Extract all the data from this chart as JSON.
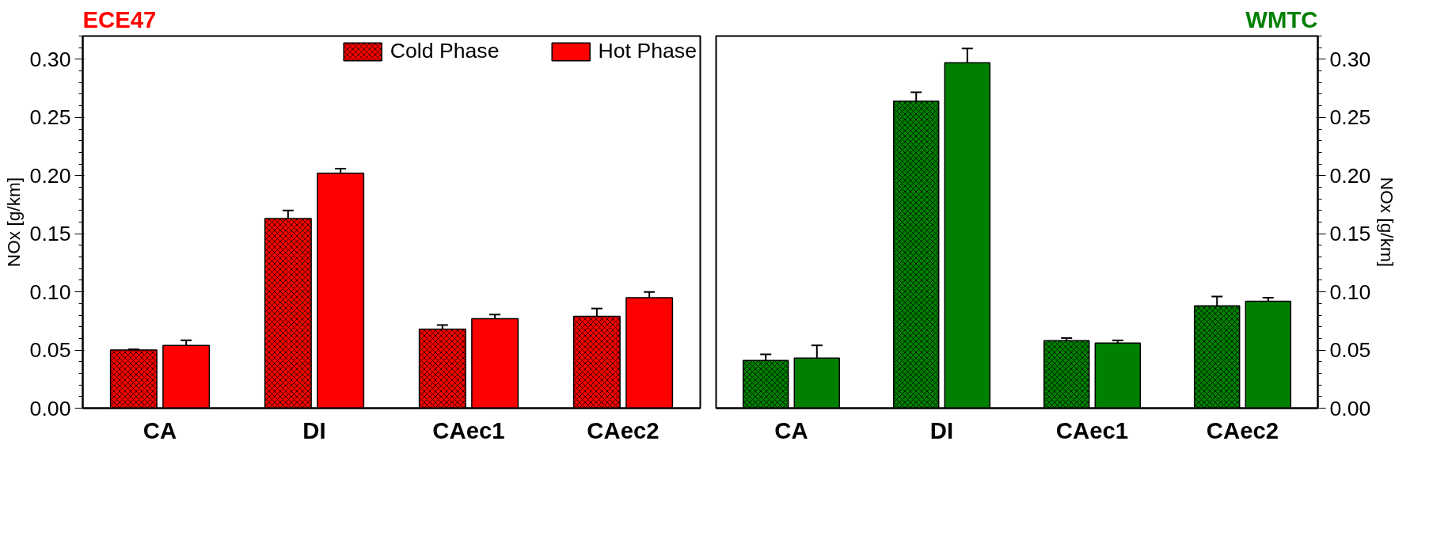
{
  "chart_data": [
    {
      "type": "bar",
      "title": "ECE47",
      "ylabel": "NOx [g/km]",
      "categories": [
        "CA",
        "DI",
        "CAec1",
        "CAec2"
      ],
      "ylim": [
        0,
        0.32
      ],
      "yticks": [
        {
          "value": 0,
          "label": "0.00"
        },
        0.05,
        {
          "value": 0.1,
          "label": "0.10"
        },
        0.15,
        {
          "value": 0.2,
          "label": "0.20"
        },
        0.25,
        {
          "value": 0.3,
          "label": "0.30"
        }
      ],
      "legend": "top",
      "series": [
        {
          "name": "Cold Phase",
          "color": "#ff0000",
          "values": [
            0.05,
            0.163,
            0.068,
            0.079
          ],
          "errors": [
            0.0005,
            0.007,
            0.0035,
            0.0067
          ]
        },
        {
          "name": "Hot Phase",
          "color": "#ff0000",
          "values": [
            0.054,
            0.202,
            0.077,
            0.095
          ],
          "errors": [
            0.0044,
            0.004,
            0.0035,
            0.005
          ]
        }
      ]
    },
    {
      "type": "bar",
      "title": "WMTC",
      "y2label": "NOx [g/km]",
      "categories": [
        "CA",
        "DI",
        "CAec1",
        "CAec2"
      ],
      "y2lim": [
        0,
        0.32
      ],
      "y2ticks": [
        {
          "value": 0,
          "label": "0.00"
        },
        0.05,
        {
          "value": 0.1,
          "label": "0.10"
        },
        0.15,
        {
          "value": 0.2,
          "label": "0.20"
        },
        0.25,
        {
          "value": 0.3,
          "label": "0.30"
        }
      ],
      "series": [
        {
          "color": "#008000",
          "axis": "y2",
          "values": [
            0.041,
            0.264,
            0.058,
            0.088
          ],
          "errors": [
            0.0053,
            0.0077,
            0.0023,
            0.008
          ]
        },
        {
          "color": "#008000",
          "axis": "y2",
          "values": [
            0.043,
            0.297,
            0.056,
            0.092
          ],
          "errors": [
            0.011,
            0.0123,
            0.0023,
            0.003
          ]
        }
      ]
    }
  ]
}
